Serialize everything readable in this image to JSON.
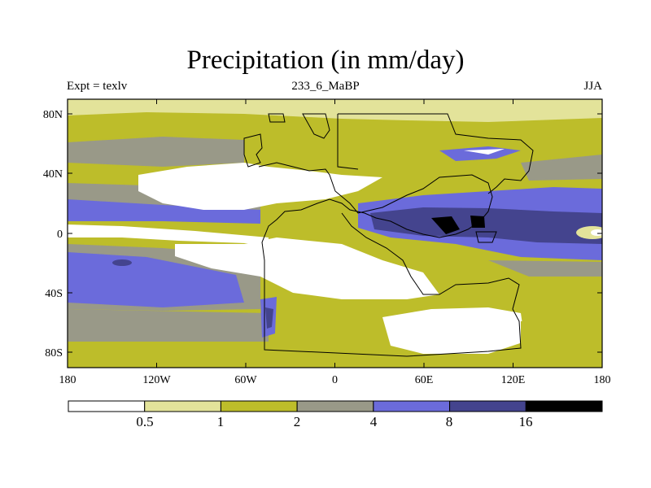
{
  "title": "Precipitation (in mm/day)",
  "expt_label": "Expt = texlv",
  "run_label": "233_6_MaBP",
  "season_label": "JJA",
  "chart_data": {
    "type": "filled-contour-map",
    "title": "Precipitation (in mm/day)",
    "x_axis": {
      "ticks": [
        "180",
        "120W",
        "60W",
        "0",
        "60E",
        "120E",
        "180"
      ],
      "range_deg": [
        -180,
        180
      ]
    },
    "y_axis": {
      "ticks": [
        "80N",
        "40N",
        "0",
        "40S",
        "80S"
      ],
      "range_deg": [
        -90,
        90
      ]
    },
    "colorbar": {
      "levels": [
        "0.5",
        "1",
        "2",
        "4",
        "8",
        "16"
      ],
      "colors": [
        "#ffffff",
        "#e3e39a",
        "#bdbd2a",
        "#999988",
        "#6b6bdb",
        "#44448e",
        "#000000"
      ]
    }
  },
  "colors": {
    "bin0": "#ffffff",
    "bin1": "#e3e39a",
    "bin2": "#bdbd2a",
    "bin3": "#999988",
    "bin4": "#6b6bdb",
    "bin5": "#44448e",
    "bin6": "#000000"
  }
}
